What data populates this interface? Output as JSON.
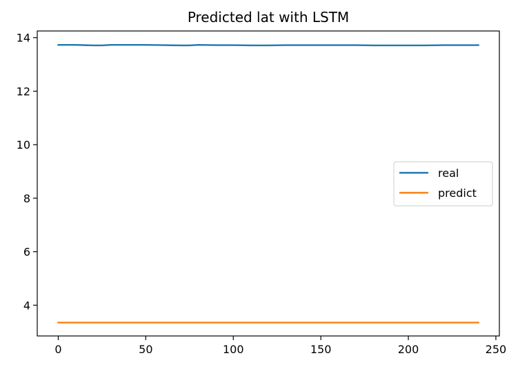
{
  "chart_data": {
    "type": "line",
    "title": "Predicted lat with LSTM",
    "xlabel": "",
    "ylabel": "",
    "xlim": [
      -12,
      252
    ],
    "ylim": [
      2.85,
      14.25
    ],
    "xticks": [
      0,
      50,
      100,
      150,
      200,
      250
    ],
    "yticks": [
      4,
      6,
      8,
      10,
      12,
      14
    ],
    "legend_position": "center-right",
    "grid": false,
    "series": [
      {
        "name": "real",
        "color": "#1f77b4",
        "x": [
          0,
          10,
          20,
          25,
          30,
          40,
          50,
          60,
          70,
          75,
          80,
          90,
          100,
          110,
          120,
          130,
          140,
          150,
          160,
          170,
          180,
          190,
          200,
          210,
          220,
          230,
          240
        ],
        "y": [
          13.73,
          13.73,
          13.71,
          13.71,
          13.73,
          13.73,
          13.73,
          13.72,
          13.71,
          13.71,
          13.73,
          13.72,
          13.72,
          13.71,
          13.71,
          13.72,
          13.72,
          13.72,
          13.72,
          13.72,
          13.71,
          13.71,
          13.71,
          13.71,
          13.72,
          13.72,
          13.72
        ]
      },
      {
        "name": "predict",
        "color": "#ff7f0e",
        "x": [
          0,
          240
        ],
        "y": [
          3.35,
          3.35
        ]
      }
    ]
  }
}
